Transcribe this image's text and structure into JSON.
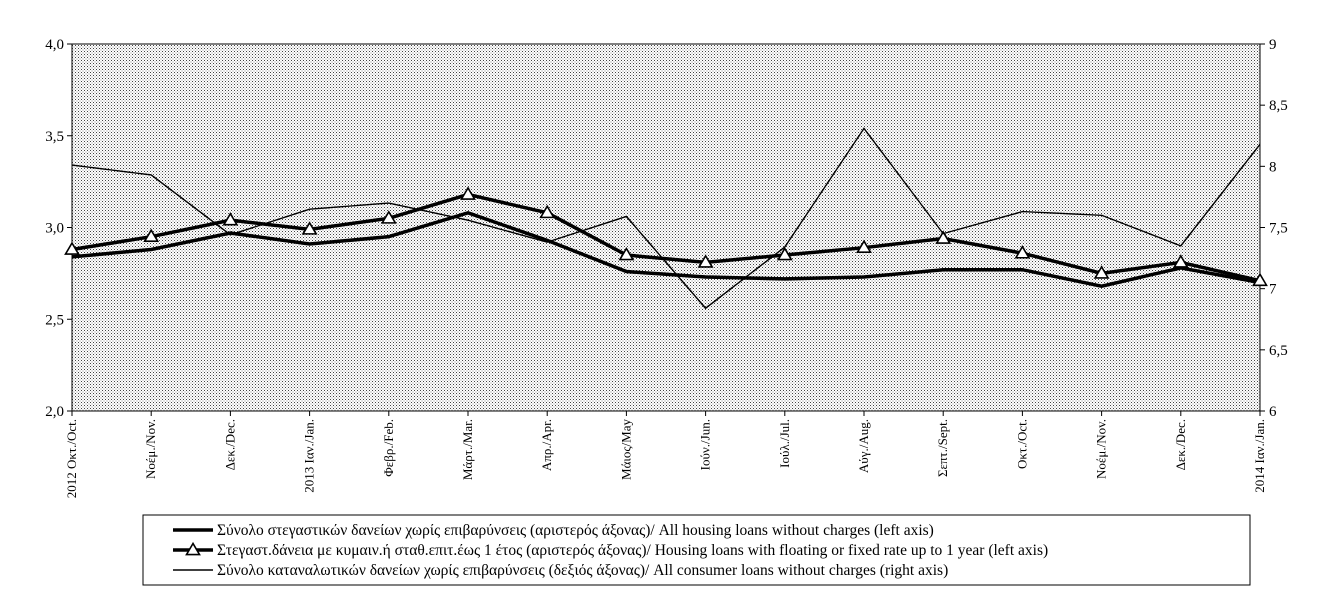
{
  "chart_data": {
    "type": "line",
    "title": "",
    "categories": [
      "2012 Οκτ./Oct.",
      "Νοέμ./Nov.",
      "Δεκ./Dec.",
      "2013 Ιαν./Jan.",
      "Φεβρ./Feb.",
      "Μάρτ./Mar.",
      "Απρ./Apr.",
      "Μάιος/May",
      "Ιούν./Jun.",
      "Ιούλ./Jul.",
      "Αύγ./Aug.",
      "Σεπτ./Sept.",
      "Οκτ./Oct.",
      "Νοέμ./Nov.",
      "Δεκ./Dec.",
      "2014 Ιαν./Jan."
    ],
    "left_axis": {
      "ylim": [
        2.0,
        4.0
      ],
      "ticks": [
        "2,0",
        "2,5",
        "3,0",
        "3,5",
        "4,0"
      ],
      "tick_values": [
        2.0,
        2.5,
        3.0,
        3.5,
        4.0
      ]
    },
    "right_axis": {
      "ylim": [
        6,
        9
      ],
      "ticks": [
        "6",
        "6,5",
        "7",
        "7,5",
        "8",
        "8,5",
        "9"
      ],
      "tick_values": [
        6,
        6.5,
        7,
        7.5,
        8,
        8.5,
        9
      ]
    },
    "grid": false,
    "plot_background": "dotted",
    "legend_position": "bottom",
    "series": [
      {
        "name": "Σύνολο στεγαστικών δανείων χωρίς επιβαρύνσεις (αριστερός άξονας)/ All housing loans without charges (left axis)",
        "axis": "left",
        "style": "thick",
        "color": "#000000",
        "values": [
          2.84,
          2.88,
          2.97,
          2.91,
          2.95,
          3.08,
          2.93,
          2.76,
          2.73,
          2.72,
          2.73,
          2.77,
          2.77,
          2.68,
          2.78,
          2.7
        ]
      },
      {
        "name": "Στεγαστ.δάνεια με κυμαιν.ή σταθ.επιτ.έως 1 έτος (αριστερός άξονας)/ Housing loans with floating or fixed rate up to 1 year (left axis)",
        "axis": "left",
        "style": "thick-triangles",
        "color": "#000000",
        "values": [
          2.88,
          2.95,
          3.04,
          2.99,
          3.05,
          3.18,
          3.08,
          2.85,
          2.81,
          2.85,
          2.89,
          2.94,
          2.86,
          2.75,
          2.81,
          2.71
        ]
      },
      {
        "name": "Σύνολο καταναλωτικών δανείων χωρίς επιβαρύνσεις (δεξιός άξονας)/ All consumer loans without charges (right axis)",
        "axis": "right",
        "style": "thin",
        "color": "#000000",
        "values": [
          8.01,
          7.93,
          7.44,
          7.65,
          7.7,
          7.56,
          7.38,
          7.59,
          6.84,
          7.34,
          8.31,
          7.45,
          7.63,
          7.6,
          7.35,
          8.18
        ]
      }
    ]
  }
}
